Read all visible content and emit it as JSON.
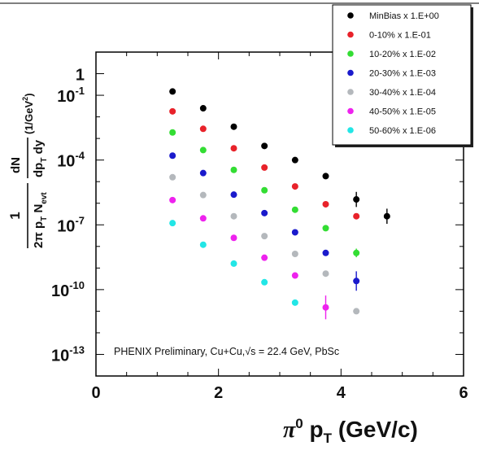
{
  "chart_data": {
    "type": "scatter",
    "xlabel": "π⁰ p_T (GeV/c)",
    "xlabel_parts": {
      "pi": "π",
      "sup": "0",
      "p": " p",
      "sub": "T",
      "unit": " (GeV/c)"
    },
    "ylabel": "1/(2π p_T N_evt) dN/(dp_T dy) (1/GeV²)",
    "ylabel_parts": {
      "one": "1",
      "den_2pi": "2π p",
      "den_T": "T",
      "den_N": " N",
      "den_evt": "evt",
      "dN": "dN",
      "dp": "dp",
      "dp_T": "T",
      "dy": " dy",
      "unit": "(1/GeV",
      "unit_sup": "2",
      "unit_close": ")"
    },
    "xlim": [
      0,
      6
    ],
    "ylim": [
      1e-14,
      10
    ],
    "yscale": "log",
    "xticks": [
      "0",
      "2",
      "4",
      "6"
    ],
    "yticks": [
      {
        "base": "1",
        "exp": ""
      },
      {
        "base": "10",
        "exp": "-1"
      },
      {
        "base": "10",
        "exp": "-4"
      },
      {
        "base": "10",
        "exp": "-7"
      },
      {
        "base": "10",
        "exp": "-10"
      },
      {
        "base": "10",
        "exp": "-13"
      }
    ],
    "ytick_values": [
      1,
      0.1,
      0.0001,
      1e-07,
      1e-10,
      1e-13
    ],
    "legend_position": "top-right",
    "annotation": "PHENIX Preliminary, Cu+Cu,√s = 22.4 GeV, PbSc",
    "series": [
      {
        "name": "MinBias x 1.E+00",
        "color": "#000000",
        "x": [
          1.25,
          1.75,
          2.25,
          2.75,
          3.25,
          3.75,
          4.25,
          4.75
        ],
        "y": [
          0.15,
          0.025,
          0.0035,
          0.00045,
          0.0001,
          1.8e-05,
          1.5e-06,
          2.5e-07
        ],
        "yerr": [
          0,
          0,
          0,
          0,
          0,
          0,
          0.35,
          0.35
        ]
      },
      {
        "name": "0-10% x 1.E-01",
        "color": "#e8222a",
        "x": [
          1.25,
          1.75,
          2.25,
          2.75,
          3.25,
          3.75,
          4.25
        ],
        "y": [
          0.018,
          0.0028,
          0.00035,
          4.5e-05,
          6e-06,
          9e-07,
          2.5e-07
        ],
        "yerr": [
          0,
          0,
          0,
          0,
          0,
          0,
          0
        ]
      },
      {
        "name": "10-20% x 1.E-02",
        "color": "#33dd33",
        "x": [
          1.25,
          1.75,
          2.25,
          2.75,
          3.25,
          3.75,
          4.25
        ],
        "y": [
          0.0019,
          0.00029,
          3.5e-05,
          4e-06,
          5e-07,
          7e-08,
          5e-09
        ],
        "yerr": [
          0,
          0,
          0,
          0,
          0,
          0,
          0.2
        ]
      },
      {
        "name": "20-30% x 1.E-03",
        "color": "#1a1acc",
        "x": [
          1.25,
          1.75,
          2.25,
          2.75,
          3.25,
          3.75,
          4.25
        ],
        "y": [
          0.00016,
          2.5e-05,
          2.5e-06,
          3.5e-07,
          4.5e-08,
          5e-09,
          2.5e-10
        ],
        "yerr": [
          0,
          0,
          0,
          0,
          0,
          0,
          0.45
        ]
      },
      {
        "name": "30-40% x 1.E-04",
        "color": "#b4b8bc",
        "x": [
          1.25,
          1.75,
          2.25,
          2.75,
          3.25,
          3.75,
          4.25
        ],
        "y": [
          1.6e-05,
          2.4e-06,
          2.5e-07,
          3e-08,
          4.5e-09,
          5.5e-10,
          1e-11
        ],
        "yerr": [
          0,
          0,
          0,
          0,
          0,
          0,
          0
        ]
      },
      {
        "name": "40-50% x 1.E-05",
        "color": "#ee22ee",
        "x": [
          1.25,
          1.75,
          2.25,
          2.75,
          3.25,
          3.75
        ],
        "y": [
          1.4e-06,
          2e-07,
          2.5e-08,
          3e-09,
          4.5e-10,
          1.5e-11
        ],
        "yerr": [
          0,
          0,
          0,
          0,
          0,
          0.55
        ]
      },
      {
        "name": "50-60% x 1.E-06",
        "color": "#22e6e6",
        "x": [
          1.25,
          1.75,
          2.25,
          2.75,
          3.25
        ],
        "y": [
          1.2e-07,
          1.2e-08,
          1.6e-09,
          2.2e-10,
          2.5e-11
        ],
        "yerr": [
          0,
          0,
          0,
          0,
          0
        ]
      }
    ]
  }
}
